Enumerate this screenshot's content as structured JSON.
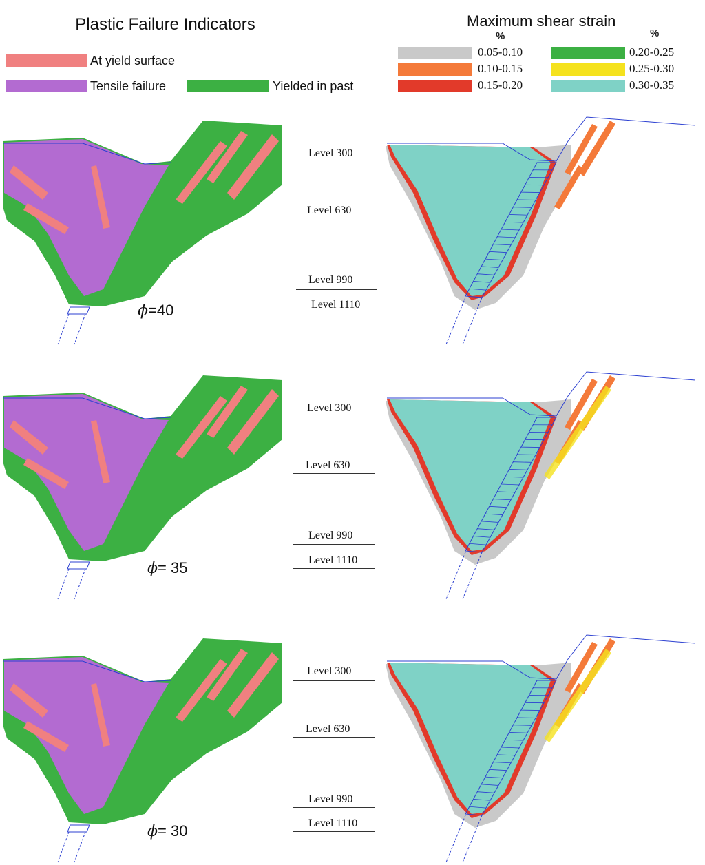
{
  "plastic_legend": {
    "title": "Plastic Failure Indicators",
    "items": [
      {
        "label": "At yield surface",
        "color": "#f08080"
      },
      {
        "label": "Tensile failure",
        "color": "#b36bd1"
      },
      {
        "label": "Yielded in past",
        "color": "#3cb043"
      }
    ]
  },
  "strain_legend": {
    "title": "Maximum shear strain",
    "unit": "%",
    "items": [
      {
        "label": "0.05-0.10",
        "color": "#c9c9c9"
      },
      {
        "label": "0.10-0.15",
        "color": "#f47a3a"
      },
      {
        "label": "0.15-0.20",
        "color": "#e23a2a"
      },
      {
        "label": "0.20-0.25",
        "color": "#3cb043"
      },
      {
        "label": "0.25-0.30",
        "color": "#f5e21e"
      },
      {
        "label": "0.30-0.35",
        "color": "#7fd2c6"
      }
    ]
  },
  "level_labels": [
    "Level 300",
    "Level 630",
    "Level 990",
    "Level 1110"
  ],
  "panels": [
    {
      "phi_symbol": "ϕ",
      "phi_text": "=40"
    },
    {
      "phi_symbol": "ϕ",
      "phi_text": "= 35"
    },
    {
      "phi_symbol": "ϕ",
      "phi_text": "= 30"
    }
  ],
  "colors": {
    "pink": "#f08080",
    "purple": "#b36bd1",
    "green": "#3cb043",
    "teal": "#7fd2c6",
    "red": "#e23a2a",
    "orange": "#f47a3a",
    "yellow": "#f5e21e",
    "grey": "#c9c9c9",
    "outline": "#2b3fd1"
  }
}
